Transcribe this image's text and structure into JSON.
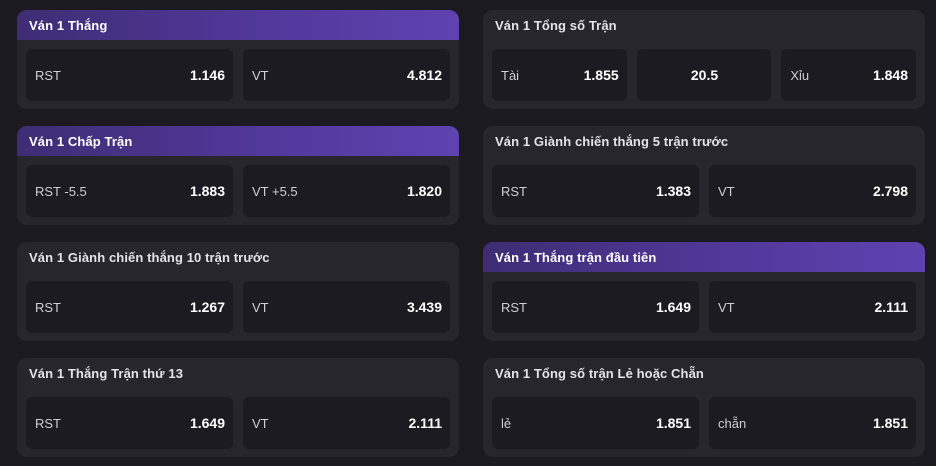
{
  "cards": [
    {
      "title": "Ván 1 Thắng",
      "active": true,
      "odds": [
        {
          "label": "RST",
          "value": "1.146"
        },
        {
          "label": "VT",
          "value": "4.812"
        }
      ]
    },
    {
      "title": "Ván 1 Tổng số Trận",
      "active": false,
      "odds": [
        {
          "label": "Tài",
          "value": "1.855"
        },
        {
          "label": "",
          "value": "20.5"
        },
        {
          "label": "Xỉu",
          "value": "1.848"
        }
      ]
    },
    {
      "title": "Ván 1 Chấp Trận",
      "active": true,
      "odds": [
        {
          "label": "RST -5.5",
          "value": "1.883"
        },
        {
          "label": "VT +5.5",
          "value": "1.820"
        }
      ]
    },
    {
      "title": "Ván 1 Giành chiến thắng 5 trận trước",
      "active": false,
      "odds": [
        {
          "label": "RST",
          "value": "1.383"
        },
        {
          "label": "VT",
          "value": "2.798"
        }
      ]
    },
    {
      "title": "Ván 1 Giành chiến thắng 10 trận trước",
      "active": false,
      "odds": [
        {
          "label": "RST",
          "value": "1.267"
        },
        {
          "label": "VT",
          "value": "3.439"
        }
      ]
    },
    {
      "title": "Ván 1 Thắng trận đầu tiên",
      "active": true,
      "odds": [
        {
          "label": "RST",
          "value": "1.649"
        },
        {
          "label": "VT",
          "value": "2.111"
        }
      ]
    },
    {
      "title": "Ván 1 Thắng Trận thứ 13",
      "active": false,
      "odds": [
        {
          "label": "RST",
          "value": "1.649"
        },
        {
          "label": "VT",
          "value": "2.111"
        }
      ]
    },
    {
      "title": "Ván 1 Tổng số trận Lẻ hoặc Chẵn",
      "active": false,
      "odds": [
        {
          "label": "lẻ",
          "value": "1.851"
        },
        {
          "label": "chẵn",
          "value": "1.851"
        }
      ]
    }
  ]
}
